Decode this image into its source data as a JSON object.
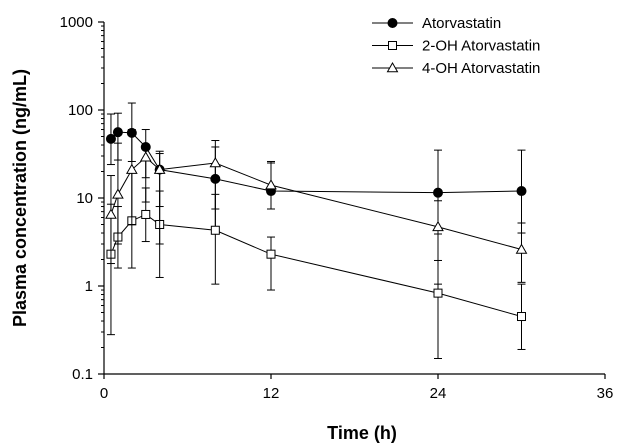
{
  "chart_data": {
    "type": "line",
    "title": "",
    "xlabel": "Time (h)",
    "ylabel": "Plasma concentration (ng/mL)",
    "xlim": [
      0,
      36
    ],
    "ylim": [
      0.1,
      1000
    ],
    "yscale": "log",
    "xticks": [
      0,
      12,
      24,
      36
    ],
    "xtick_labels": [
      "0",
      "12",
      "24",
      "36"
    ],
    "yticks": [
      0.1,
      1,
      10,
      100,
      1000
    ],
    "ytick_labels": [
      "0.1",
      "1",
      "10",
      "100",
      "1000"
    ],
    "grid": false,
    "legend_position": "top-right",
    "series": [
      {
        "name": "Atorvastatin",
        "marker": "filled-circle",
        "color": "#000000",
        "x": [
          0.5,
          1,
          2,
          3,
          4,
          8,
          12,
          24,
          30
        ],
        "y": [
          47,
          56,
          55,
          38,
          21,
          16.5,
          12,
          11.5,
          12
        ],
        "err_low": [
          24,
          27,
          26,
          17,
          8,
          4,
          7.5,
          3.9,
          4
        ],
        "err_high": [
          90,
          92,
          120,
          60,
          34,
          38,
          25,
          35,
          35
        ]
      },
      {
        "name": "2-OH Atorvastatin",
        "marker": "open-square",
        "color": "#000000",
        "x": [
          0.5,
          1,
          2,
          3,
          4,
          8,
          12,
          24,
          30
        ],
        "y": [
          2.3,
          3.6,
          5.5,
          6.5,
          5.0,
          4.3,
          2.3,
          0.83,
          0.45
        ],
        "err_low": [
          0.28,
          1.6,
          1.6,
          3.2,
          1.25,
          1.05,
          0.9,
          0.15,
          0.19
        ],
        "err_high": [
          8.5,
          8.0,
          20,
          13,
          12,
          11,
          3.6,
          1.95,
          1.05
        ]
      },
      {
        "name": "4-OH Atorvastatin",
        "marker": "open-triangle",
        "color": "#000000",
        "x": [
          0.5,
          1,
          2,
          3,
          4,
          8,
          12,
          24,
          30
        ],
        "y": [
          6.5,
          11,
          21,
          29,
          21,
          25,
          14,
          4.7,
          2.6
        ],
        "err_low": [
          1.8,
          3.0,
          5.0,
          9.0,
          3.0,
          7.5,
          7.5,
          1.05,
          1.1
        ],
        "err_high": [
          18,
          42,
          60,
          36,
          32,
          45,
          26,
          9.3,
          5.2
        ]
      }
    ]
  }
}
